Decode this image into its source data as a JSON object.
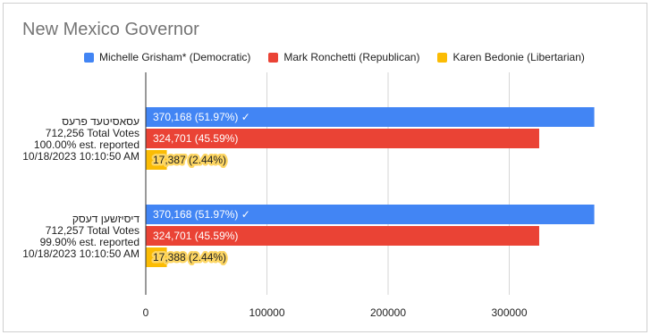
{
  "chart_data": {
    "type": "bar",
    "orientation": "horizontal",
    "title": "New Mexico Governor",
    "legend_position": "top",
    "grid": true,
    "xlim": [
      0,
      380000
    ],
    "xticks": [
      0,
      100000,
      200000,
      300000
    ],
    "xtick_labels": [
      "0",
      "100000",
      "200000",
      "300000"
    ],
    "series": [
      {
        "name": "Michelle Grisham* (Democratic)",
        "color": "#4285f4",
        "label_color": "#ffffff",
        "highlight": false
      },
      {
        "name": "Mark Ronchetti (Republican)",
        "color": "#ea4335",
        "label_color": "#ffffff",
        "highlight": false
      },
      {
        "name": "Karen Bedonie (Libertarian)",
        "color": "#fbbc04",
        "label_color": "#222222",
        "highlight": true
      }
    ],
    "categories": [
      {
        "lines": [
          "עסאסיטעד פרעס",
          "712,256 Total Votes",
          "100.00% est. reported",
          " 10/18/2023 10:10:50 AM"
        ],
        "values": [
          370168,
          324701,
          17387
        ],
        "labels": [
          "370,168 (51.97%) ✓",
          "324,701 (45.59%)",
          "17,387 (2.44%)"
        ]
      },
      {
        "lines": [
          "דיסיזשען דעסק",
          "712,257 Total Votes",
          "99.90% est. reported",
          " 10/18/2023 10:10:50 AM"
        ],
        "values": [
          370168,
          324701,
          17388
        ],
        "labels": [
          "370,168 (51.97%) ✓",
          "324,701 (45.59%)",
          "17,388 (2.44%)"
        ]
      }
    ]
  }
}
